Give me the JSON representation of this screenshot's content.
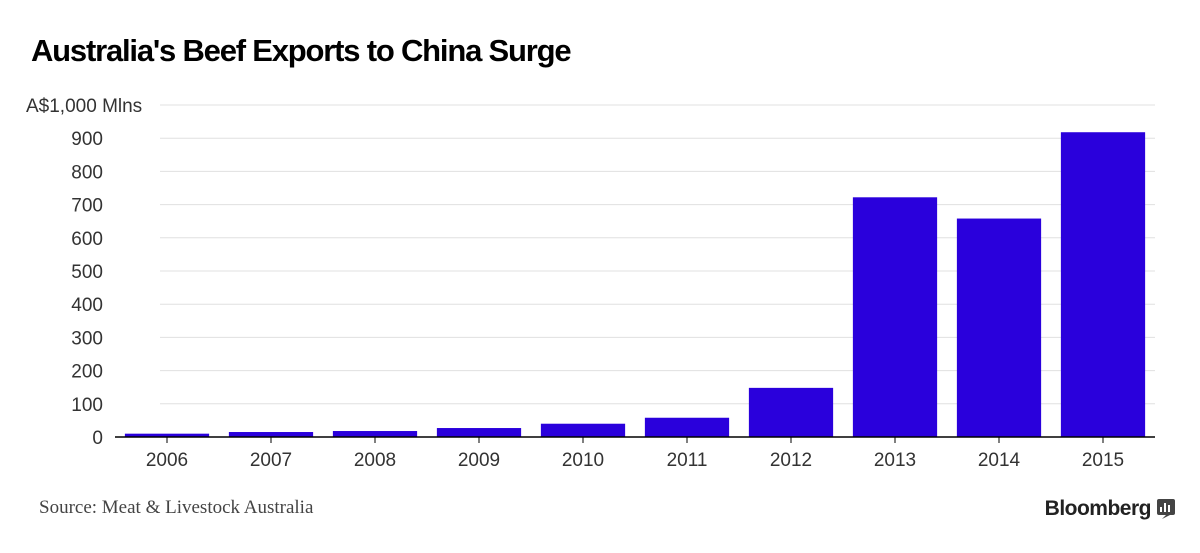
{
  "chart_data": {
    "type": "bar",
    "title": "Australia's Beef Exports to China Surge",
    "unit_label": "A$1,000 Mlns",
    "xlabel": "",
    "ylabel": "",
    "categories": [
      "2006",
      "2007",
      "2008",
      "2009",
      "2010",
      "2011",
      "2012",
      "2013",
      "2014",
      "2015"
    ],
    "values": [
      10,
      15,
      18,
      27,
      40,
      58,
      148,
      722,
      658,
      918
    ],
    "ylim": [
      0,
      1000
    ],
    "y_ticks": [
      0,
      100,
      200,
      300,
      400,
      500,
      600,
      700,
      800,
      900
    ],
    "grid": true,
    "bar_color": "#2a00dc",
    "grid_color": "#e0e0e0",
    "axis_color": "#000000"
  },
  "footer": {
    "source": "Source: Meat & Livestock Australia",
    "brand": "Bloomberg"
  },
  "icons": {
    "brand_icon": "bloomberg-chart-icon"
  }
}
